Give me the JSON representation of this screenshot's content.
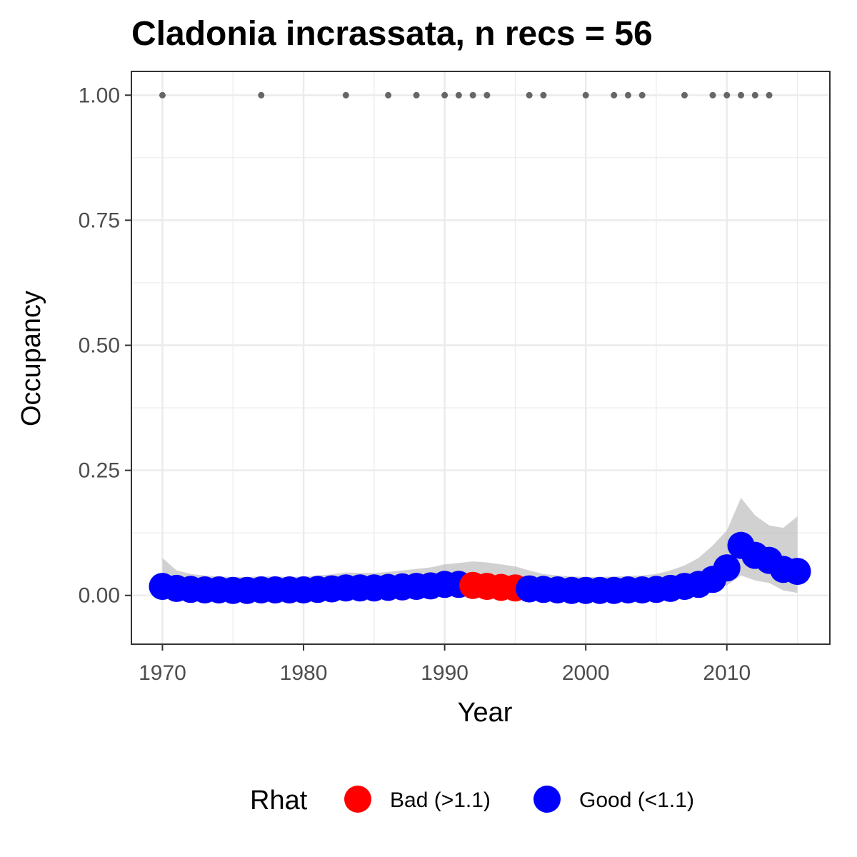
{
  "chart_data": {
    "type": "scatter",
    "title": "Cladonia incrassata, n recs = 56",
    "xlabel": "Year",
    "ylabel": "Occupancy",
    "xlim": [
      1967.8,
      1717.3
    ],
    "ylim": [
      -0.0975,
      1.0475
    ],
    "x_ticks": [
      1970,
      1980,
      1990,
      2000,
      2010
    ],
    "x_tick_labels": [
      "1970",
      "1980",
      "1990",
      "2000",
      "2010"
    ],
    "y_ticks": [
      0,
      0.25,
      0.5,
      0.75,
      1.0
    ],
    "y_tick_labels": [
      "0.00",
      "0.25",
      "0.50",
      "0.75",
      "1.00"
    ],
    "grid": true,
    "legend": {
      "position": "bottom",
      "title": "Rhat",
      "entries": [
        {
          "label": "Bad (>1.1)",
          "color": "#ff0000"
        },
        {
          "label": "Good (<1.1)",
          "color": "#0000ff"
        }
      ]
    },
    "records": {
      "color": "#666666",
      "y": 1.0,
      "years": [
        1970,
        1977,
        1983,
        1986,
        1988,
        1990,
        1991,
        1992,
        1993,
        1996,
        1997,
        2000,
        2002,
        2003,
        2004,
        2007,
        2009,
        2010,
        2011,
        2012,
        2013
      ]
    },
    "series": [
      {
        "name": "Occupancy",
        "x": [
          1970,
          1971,
          1972,
          1973,
          1974,
          1975,
          1976,
          1977,
          1978,
          1979,
          1980,
          1981,
          1982,
          1983,
          1984,
          1985,
          1986,
          1987,
          1988,
          1989,
          1990,
          1991,
          1992,
          1993,
          1994,
          1995,
          1996,
          1997,
          1998,
          1999,
          2000,
          2001,
          2002,
          2003,
          2004,
          2005,
          2006,
          2007,
          2008,
          2009,
          2010,
          2011,
          2012,
          2013,
          2014,
          2015
        ],
        "y": [
          0.018,
          0.014,
          0.012,
          0.011,
          0.011,
          0.01,
          0.01,
          0.011,
          0.011,
          0.011,
          0.011,
          0.012,
          0.013,
          0.015,
          0.015,
          0.015,
          0.016,
          0.017,
          0.018,
          0.019,
          0.022,
          0.022,
          0.02,
          0.018,
          0.016,
          0.015,
          0.013,
          0.012,
          0.011,
          0.01,
          0.01,
          0.01,
          0.01,
          0.011,
          0.011,
          0.012,
          0.014,
          0.018,
          0.022,
          0.032,
          0.055,
          0.1,
          0.08,
          0.07,
          0.052,
          0.048
        ],
        "rhat": [
          "Good",
          "Good",
          "Good",
          "Good",
          "Good",
          "Good",
          "Good",
          "Good",
          "Good",
          "Good",
          "Good",
          "Good",
          "Good",
          "Good",
          "Good",
          "Good",
          "Good",
          "Good",
          "Good",
          "Good",
          "Good",
          "Good",
          "Bad",
          "Bad",
          "Bad",
          "Bad",
          "Good",
          "Good",
          "Good",
          "Good",
          "Good",
          "Good",
          "Good",
          "Good",
          "Good",
          "Good",
          "Good",
          "Good",
          "Good",
          "Good",
          "Good",
          "Good",
          "Good",
          "Good",
          "Good",
          "Good"
        ],
        "lower": [
          0.005,
          0.004,
          0.003,
          0.003,
          0.003,
          0.003,
          0.003,
          0.003,
          0.003,
          0.003,
          0.003,
          0.003,
          0.003,
          0.004,
          0.004,
          0.004,
          0.004,
          0.004,
          0.004,
          0.004,
          0.005,
          0.005,
          0.005,
          0.004,
          0.004,
          0.004,
          0.003,
          0.003,
          0.003,
          0.003,
          0.003,
          0.003,
          0.003,
          0.003,
          0.003,
          0.003,
          0.004,
          0.005,
          0.006,
          0.01,
          0.02,
          0.04,
          0.03,
          0.025,
          0.01,
          0.005
        ],
        "upper": [
          0.075,
          0.05,
          0.043,
          0.04,
          0.038,
          0.037,
          0.037,
          0.038,
          0.038,
          0.037,
          0.038,
          0.04,
          0.042,
          0.046,
          0.045,
          0.045,
          0.047,
          0.05,
          0.053,
          0.056,
          0.062,
          0.065,
          0.068,
          0.066,
          0.062,
          0.058,
          0.05,
          0.043,
          0.04,
          0.038,
          0.037,
          0.037,
          0.038,
          0.039,
          0.04,
          0.043,
          0.05,
          0.06,
          0.075,
          0.1,
          0.13,
          0.195,
          0.16,
          0.14,
          0.135,
          0.158
        ]
      }
    ],
    "colors": {
      "good": "#0000ff",
      "bad": "#ff0000",
      "ribbon": "#bebebe",
      "grid": "#ebebeb",
      "panel_border": "#333333"
    }
  }
}
